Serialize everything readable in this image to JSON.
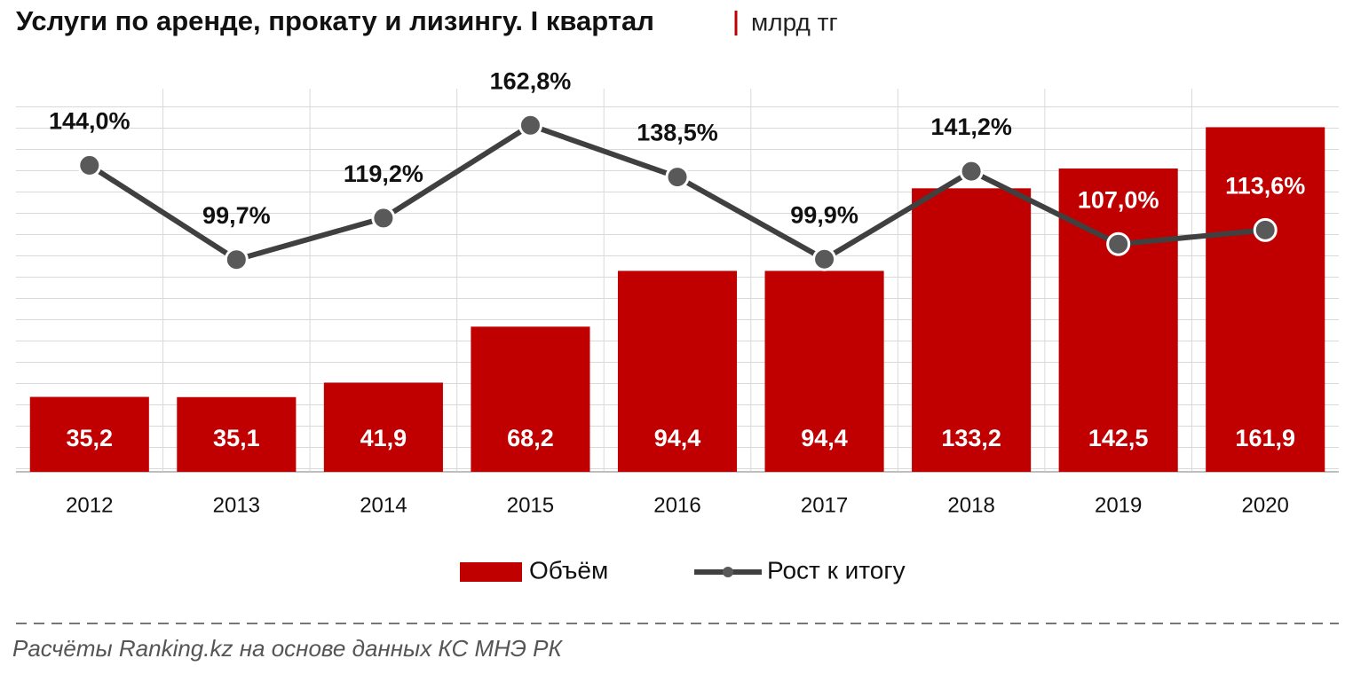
{
  "chart_data": {
    "type": "bar-line",
    "title": "Услуги по аренде, прокату и лизингу. I квартал",
    "subtitle": "млрд тг",
    "source": "Расчёты Ranking.kz на основе данных КС МНЭ РК",
    "categories": [
      "2012",
      "2013",
      "2014",
      "2015",
      "2016",
      "2017",
      "2018",
      "2019",
      "2020"
    ],
    "series": [
      {
        "name": "Объём",
        "type": "bar",
        "color": "#c00000",
        "values": [
          35.2,
          35.1,
          41.9,
          68.2,
          94.4,
          94.4,
          133.2,
          142.5,
          161.9
        ],
        "value_labels": [
          "35,2",
          "35,1",
          "41,9",
          "68,2",
          "94,4",
          "94,4",
          "133,2",
          "142,5",
          "161,9"
        ]
      },
      {
        "name": "Рост к итогу",
        "type": "line",
        "axis": "y2",
        "color": "#404040",
        "values": [
          144.0,
          99.7,
          119.2,
          162.8,
          138.5,
          99.9,
          141.2,
          107.0,
          113.6
        ],
        "value_labels": [
          "144,0%",
          "99,7%",
          "119,2%",
          "162,8%",
          "138,5%",
          "99,9%",
          "141,2%",
          "107,0%",
          "113,6%"
        ]
      }
    ],
    "ylim": [
      0,
      180
    ],
    "y2lim": [
      0,
      180
    ]
  }
}
